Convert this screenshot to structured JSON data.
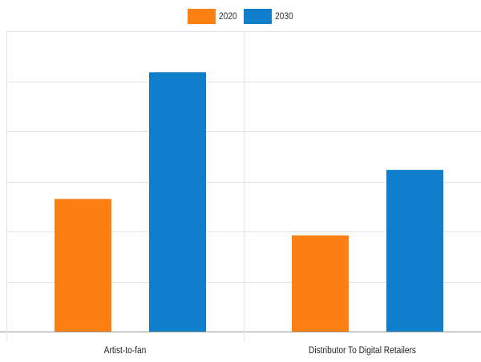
{
  "chart_data": {
    "type": "bar",
    "categories": [
      "Artist-to-fan",
      "Distributor To Digital Retailers"
    ],
    "series": [
      {
        "name": "2020",
        "values": [
          2.65,
          1.92
        ]
      },
      {
        "name": "2030",
        "values": [
          5.18,
          3.23
        ]
      }
    ],
    "ylim": [
      0,
      6
    ],
    "grid": true,
    "legend_position": "top",
    "colors": [
      "#ff8012",
      "#0f7ecb"
    ]
  },
  "colors": {
    "gridline": "#e3e3e3",
    "axis": "#9a9a9a",
    "label": "#222222"
  }
}
